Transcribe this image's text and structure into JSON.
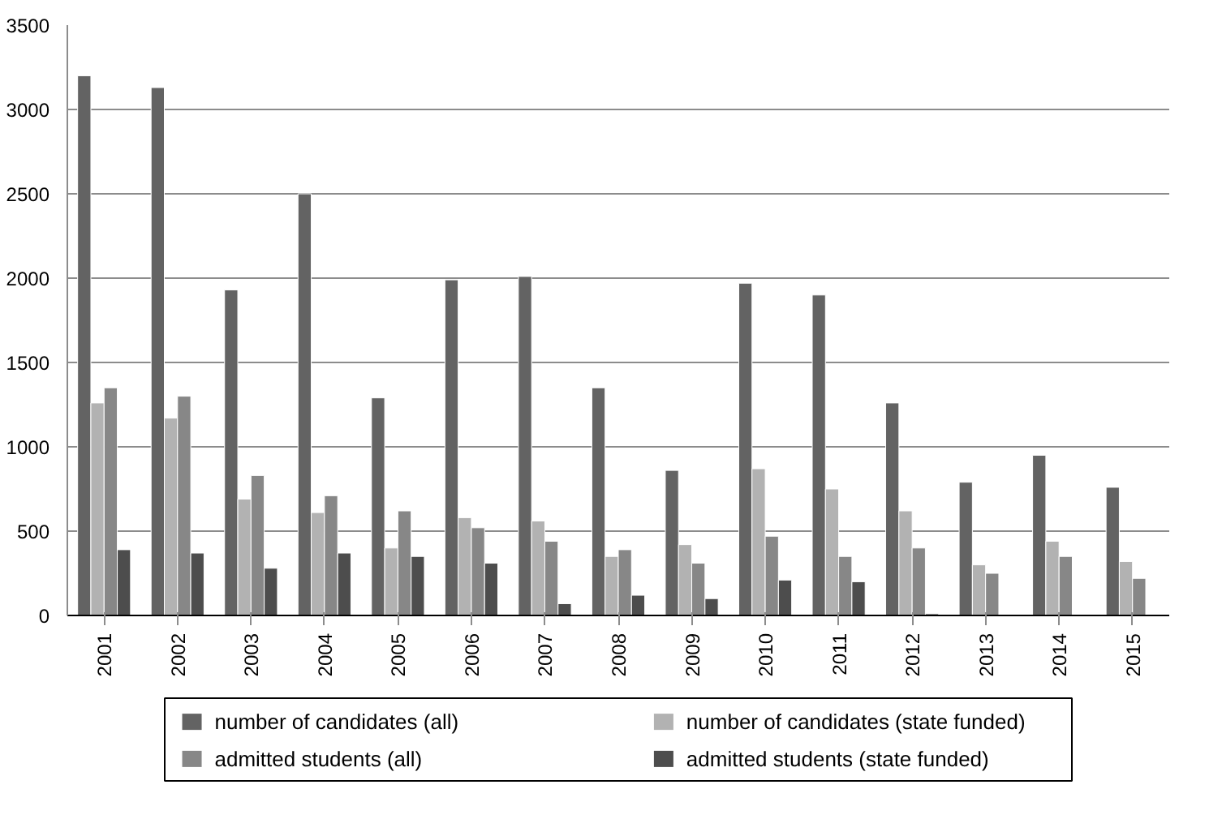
{
  "chart_data": {
    "type": "bar",
    "categories": [
      "2001",
      "2002",
      "2003",
      "2004",
      "2005",
      "2006",
      "2007",
      "2008",
      "2009",
      "2010",
      "2011",
      "2012",
      "2013",
      "2014",
      "2015"
    ],
    "series": [
      {
        "name": "number of candidates (all)",
        "color": "#636363",
        "values": [
          3200,
          3130,
          1930,
          2500,
          1290,
          1990,
          2010,
          1350,
          860,
          1970,
          1900,
          1260,
          790,
          950,
          760
        ]
      },
      {
        "name": "number of candidates (state funded)",
        "color": "#b2b2b2",
        "values": [
          1260,
          1170,
          690,
          610,
          400,
          580,
          560,
          350,
          420,
          870,
          750,
          620,
          300,
          440,
          320
        ]
      },
      {
        "name": "admitted students (all)",
        "color": "#878787",
        "values": [
          1350,
          1300,
          830,
          710,
          620,
          520,
          440,
          390,
          310,
          470,
          350,
          400,
          250,
          350,
          220
        ]
      },
      {
        "name": "admitted students (state funded)",
        "color": "#4d4d4d",
        "values": [
          390,
          370,
          280,
          370,
          350,
          310,
          70,
          120,
          100,
          210,
          200,
          10,
          null,
          null,
          null
        ]
      }
    ],
    "ylim": [
      0,
      3500
    ],
    "yticks": [
      0,
      500,
      1000,
      1500,
      2000,
      2500,
      3000,
      3500
    ],
    "grid": "y",
    "legend": "bottom"
  }
}
